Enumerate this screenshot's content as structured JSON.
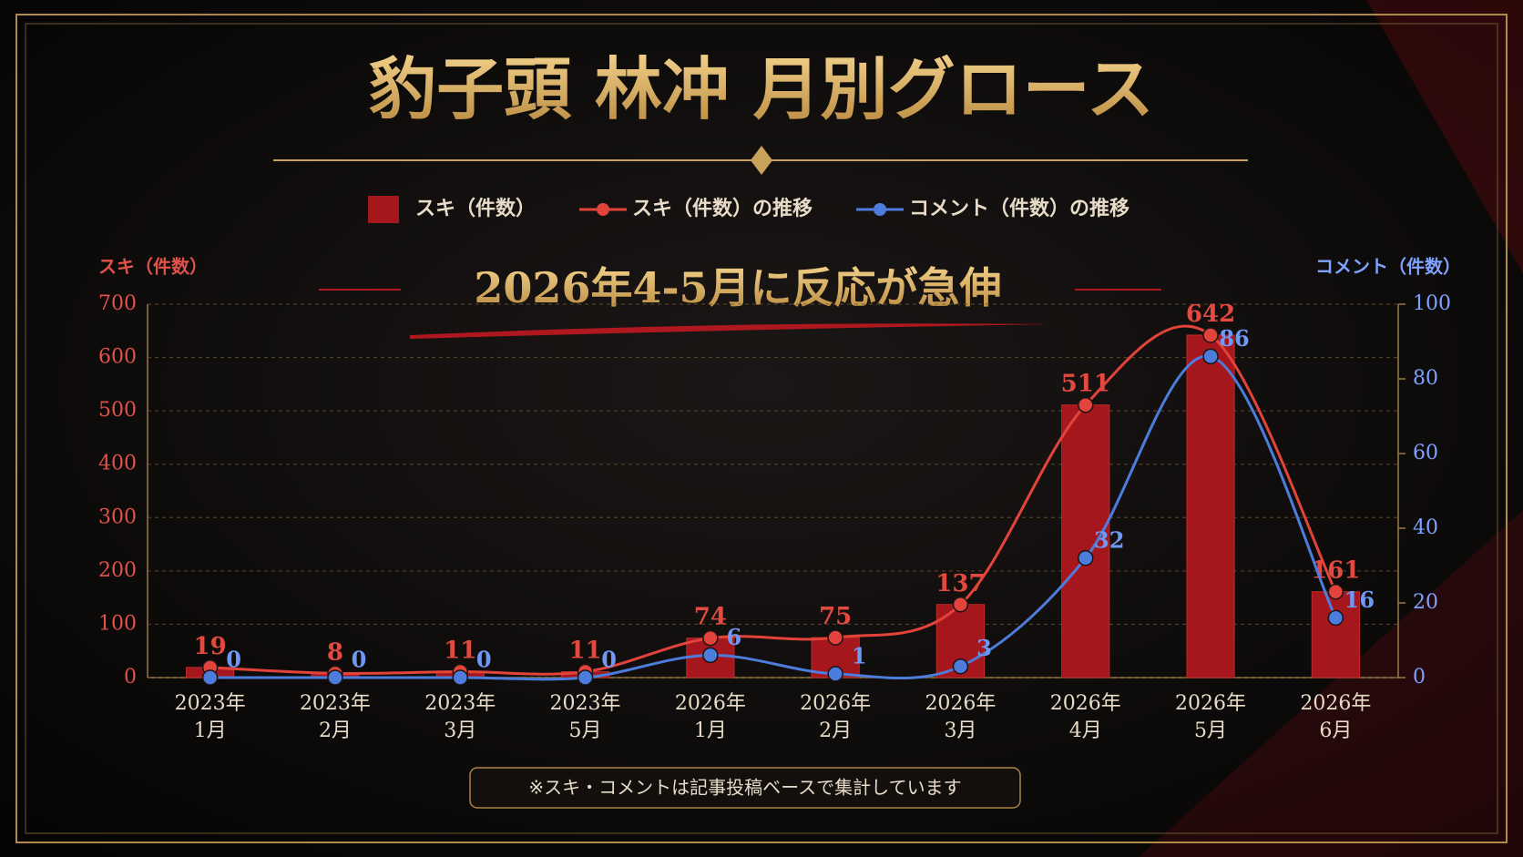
{
  "chart_data": {
    "type": "bar",
    "title": "豹子頭 林冲 月別グロース",
    "annotation": "2026年4-5月に反応が急伸",
    "footnote": "※スキ・コメントは記事投稿ベースで集計しています",
    "ylabel": "スキ（件数）",
    "y2label": "コメント（件数）",
    "categories": [
      "2023年\n1月",
      "2023年\n2月",
      "2023年\n3月",
      "2023年\n5月",
      "2026年\n1月",
      "2026年\n2月",
      "2026年\n3月",
      "2026年\n4月",
      "2026年\n5月",
      "2026年\n6月"
    ],
    "series": [
      {
        "name": "スキ（件数）",
        "type": "bar",
        "color": "#a5161d",
        "values": [
          19,
          8,
          11,
          11,
          74,
          75,
          137,
          511,
          642,
          161
        ]
      },
      {
        "name": "スキ（件数）の推移",
        "type": "line",
        "color": "#e2433b",
        "values": [
          19,
          8,
          11,
          11,
          74,
          75,
          137,
          511,
          642,
          161
        ]
      },
      {
        "name": "コメント（件数）の推移",
        "type": "line",
        "axis": "y2",
        "color": "#4d7ddc",
        "values": [
          0,
          0,
          0,
          0,
          6,
          1,
          3,
          32,
          86,
          16
        ]
      }
    ],
    "ylim": [
      0,
      700
    ],
    "yticks": [
      0,
      100,
      200,
      300,
      400,
      500,
      600,
      700
    ],
    "y2lim": [
      0,
      100
    ],
    "y2ticks": [
      0,
      20,
      40,
      60,
      80,
      100
    ],
    "grid": true
  }
}
